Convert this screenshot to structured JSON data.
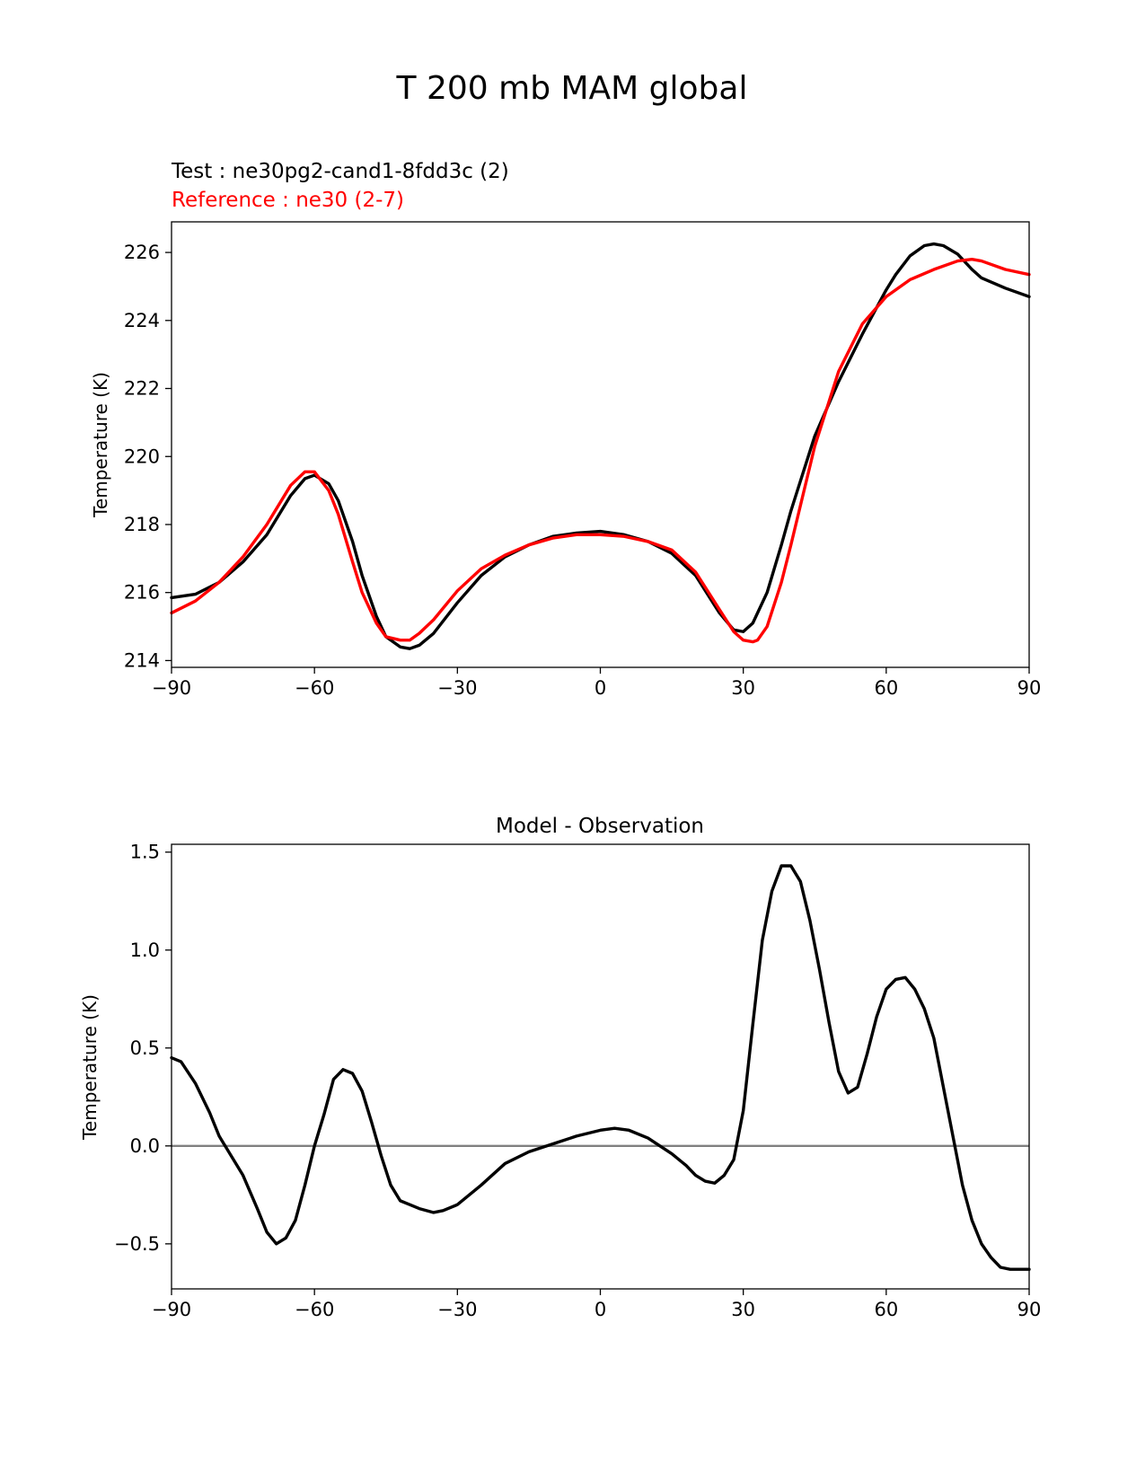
{
  "figure": {
    "title": "T 200 mb MAM global"
  },
  "chart_data": [
    {
      "type": "line",
      "title_lines": [
        {
          "text": "Test : ne30pg2-cand1-8fdd3c (2)",
          "color": "#000000"
        },
        {
          "text": "Reference : ne30 (2-7)",
          "color": "#ff0000"
        }
      ],
      "xlabel": "",
      "ylabel": "Temperature (K)",
      "xlim": [
        -90,
        90
      ],
      "ylim": [
        213.8,
        226.9
      ],
      "xticks": [
        -90,
        -60,
        -30,
        0,
        30,
        60,
        90
      ],
      "xtick_labels": [
        "−90",
        "−60",
        "−30",
        "0",
        "30",
        "60",
        "90"
      ],
      "yticks": [
        214,
        216,
        218,
        220,
        222,
        224,
        226
      ],
      "ytick_labels": [
        "214",
        "216",
        "218",
        "220",
        "222",
        "224",
        "226"
      ],
      "grid": false,
      "legend": "none",
      "series": [
        {
          "color": "#000000",
          "x": [
            -90,
            -85,
            -80,
            -75,
            -70,
            -65,
            -62,
            -60,
            -57,
            -55,
            -52,
            -50,
            -47,
            -45,
            -42,
            -40,
            -38,
            -35,
            -30,
            -25,
            -20,
            -15,
            -10,
            -5,
            0,
            5,
            10,
            15,
            20,
            25,
            28,
            30,
            32,
            35,
            38,
            40,
            45,
            50,
            55,
            60,
            62,
            65,
            68,
            70,
            72,
            75,
            78,
            80,
            85,
            90
          ],
          "y": [
            215.85,
            215.95,
            216.3,
            216.9,
            217.7,
            218.85,
            219.35,
            219.45,
            219.2,
            218.7,
            217.5,
            216.5,
            215.3,
            214.7,
            214.4,
            214.35,
            214.45,
            214.8,
            215.7,
            216.5,
            217.05,
            217.4,
            217.65,
            217.75,
            217.8,
            217.7,
            217.5,
            217.15,
            216.5,
            215.4,
            214.9,
            214.85,
            215.1,
            216.0,
            217.4,
            218.4,
            220.6,
            222.2,
            223.6,
            224.9,
            225.35,
            225.9,
            226.2,
            226.25,
            226.2,
            225.95,
            225.5,
            225.25,
            224.95,
            224.7
          ]
        },
        {
          "color": "#ff0000",
          "x": [
            -90,
            -85,
            -80,
            -75,
            -70,
            -65,
            -62,
            -60,
            -57,
            -55,
            -52,
            -50,
            -47,
            -45,
            -42,
            -40,
            -38,
            -35,
            -30,
            -25,
            -20,
            -15,
            -10,
            -5,
            0,
            5,
            10,
            15,
            20,
            25,
            28,
            30,
            32,
            33,
            35,
            38,
            40,
            45,
            50,
            55,
            60,
            65,
            70,
            75,
            78,
            80,
            85,
            90
          ],
          "y": [
            215.4,
            215.75,
            216.3,
            217.05,
            218.0,
            219.15,
            219.55,
            219.55,
            219.0,
            218.3,
            216.9,
            216.0,
            215.1,
            214.7,
            214.6,
            214.6,
            214.8,
            215.2,
            216.05,
            216.7,
            217.1,
            217.4,
            217.6,
            217.7,
            217.7,
            217.65,
            217.5,
            217.25,
            216.6,
            215.5,
            214.85,
            214.6,
            214.55,
            214.6,
            215.0,
            216.3,
            217.4,
            220.3,
            222.5,
            223.9,
            224.7,
            225.2,
            225.5,
            225.75,
            225.8,
            225.75,
            225.5,
            225.35
          ]
        }
      ]
    },
    {
      "type": "line",
      "title": "Model - Observation",
      "xlabel": "",
      "ylabel": "Temperature (K)",
      "xlim": [
        -90,
        90
      ],
      "ylim": [
        -0.73,
        1.54
      ],
      "xticks": [
        -90,
        -60,
        -30,
        0,
        30,
        60,
        90
      ],
      "xtick_labels": [
        "−90",
        "−60",
        "−30",
        "0",
        "30",
        "60",
        "90"
      ],
      "yticks": [
        -0.5,
        0.0,
        0.5,
        1.0,
        1.5
      ],
      "ytick_labels": [
        "−0.5",
        "0.0",
        "0.5",
        "1.0",
        "1.5"
      ],
      "grid": false,
      "legend": "none",
      "reference_line": {
        "y": 0.0,
        "color": "#808080"
      },
      "series": [
        {
          "color": "#000000",
          "x": [
            -90,
            -88,
            -85,
            -82,
            -80,
            -75,
            -72,
            -70,
            -68,
            -66,
            -64,
            -62,
            -60,
            -58,
            -56,
            -54,
            -52,
            -50,
            -48,
            -46,
            -44,
            -42,
            -40,
            -38,
            -35,
            -33,
            -30,
            -25,
            -20,
            -15,
            -10,
            -5,
            0,
            3,
            6,
            10,
            15,
            18,
            20,
            22,
            24,
            26,
            28,
            30,
            32,
            34,
            36,
            38,
            40,
            42,
            44,
            46,
            48,
            50,
            52,
            54,
            56,
            58,
            60,
            62,
            64,
            66,
            68,
            70,
            72,
            74,
            76,
            78,
            80,
            82,
            84,
            86,
            88,
            90
          ],
          "y": [
            0.45,
            0.43,
            0.32,
            0.17,
            0.05,
            -0.15,
            -0.32,
            -0.44,
            -0.5,
            -0.47,
            -0.38,
            -0.2,
            0.0,
            0.16,
            0.34,
            0.39,
            0.37,
            0.28,
            0.12,
            -0.05,
            -0.2,
            -0.28,
            -0.3,
            -0.32,
            -0.34,
            -0.33,
            -0.3,
            -0.2,
            -0.09,
            -0.03,
            0.01,
            0.05,
            0.08,
            0.09,
            0.08,
            0.04,
            -0.04,
            -0.1,
            -0.15,
            -0.18,
            -0.19,
            -0.15,
            -0.07,
            0.18,
            0.62,
            1.05,
            1.3,
            1.43,
            1.43,
            1.35,
            1.15,
            0.9,
            0.63,
            0.38,
            0.27,
            0.3,
            0.47,
            0.66,
            0.8,
            0.85,
            0.86,
            0.8,
            0.7,
            0.55,
            0.3,
            0.05,
            -0.2,
            -0.38,
            -0.5,
            -0.57,
            -0.62,
            -0.63,
            -0.63,
            -0.63
          ]
        }
      ]
    }
  ]
}
